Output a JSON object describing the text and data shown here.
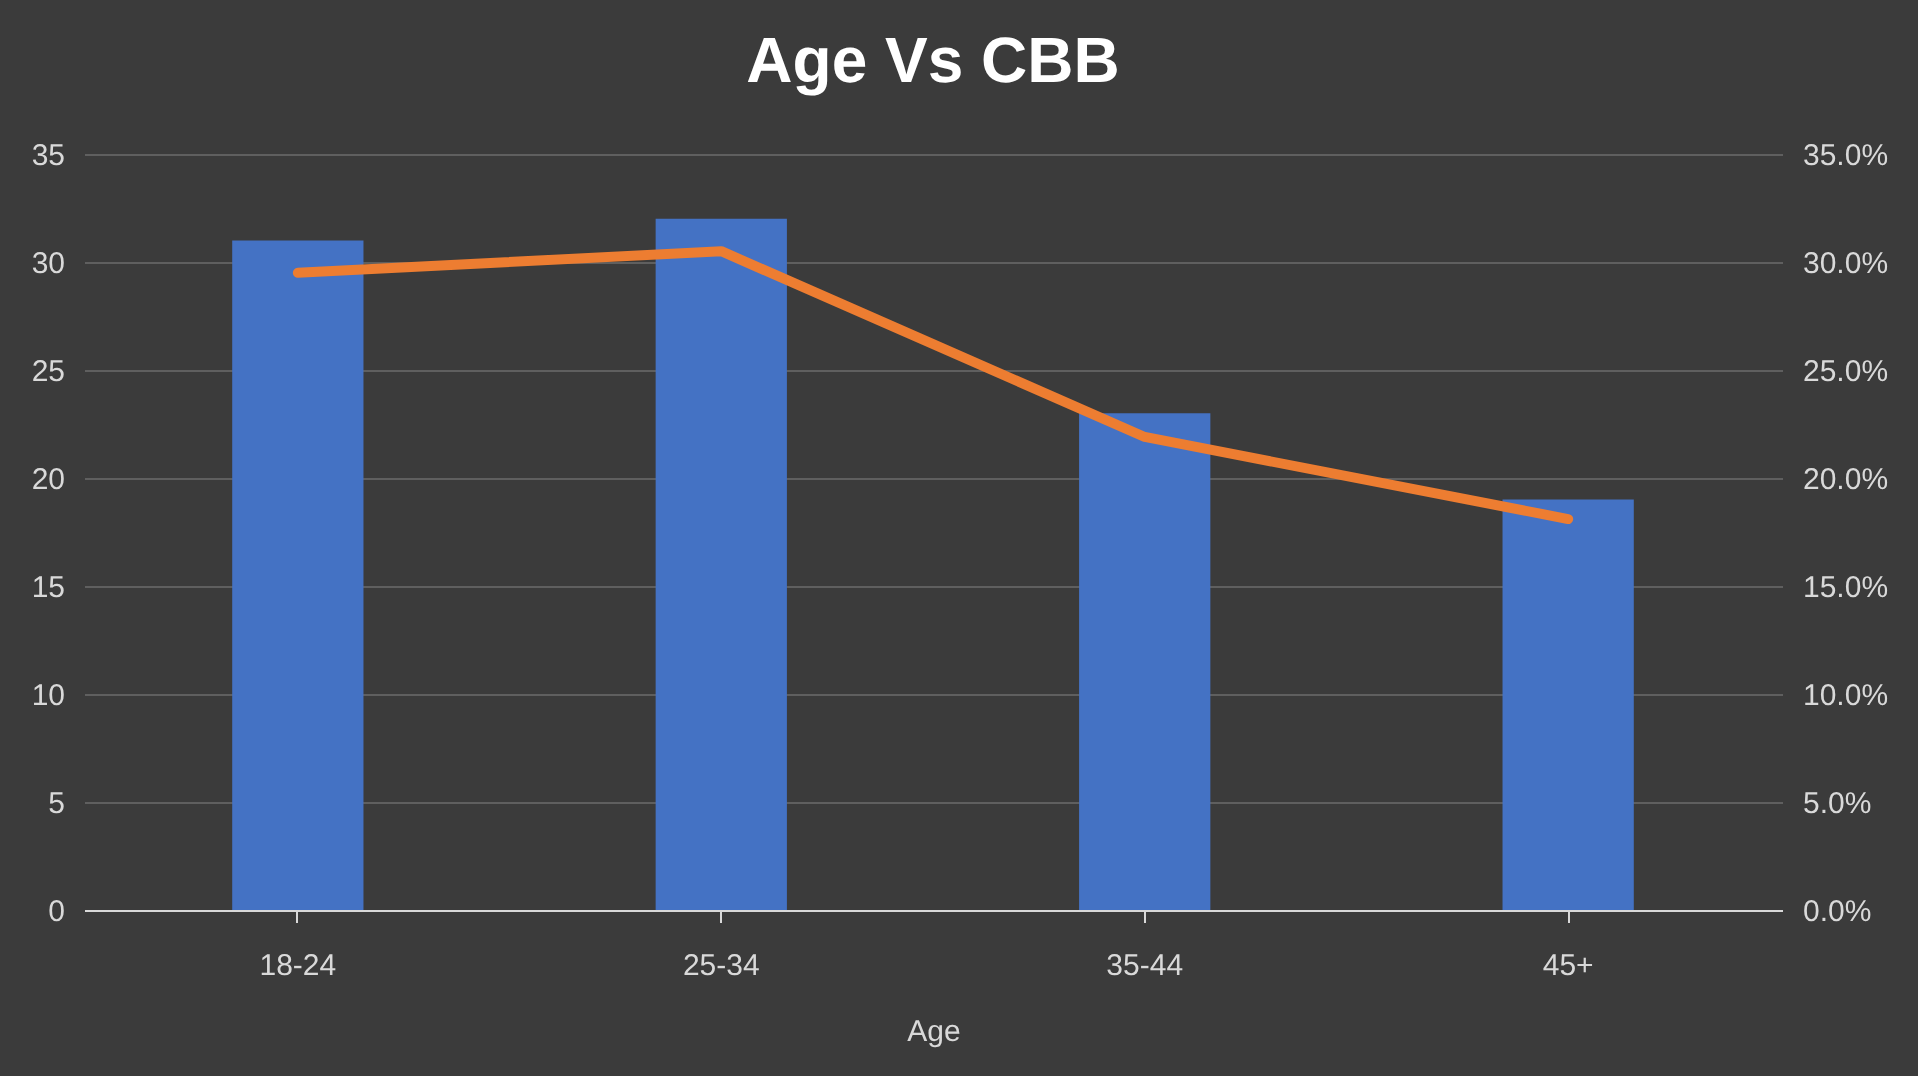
{
  "chart_data": {
    "type": "bar",
    "title": "Age Vs CBB",
    "xlabel": "Age",
    "categories": [
      "18-24",
      "25-34",
      "35-44",
      "45+"
    ],
    "series": [
      {
        "color": "#4472c4",
        "values": [
          31,
          32,
          23,
          19
        ]
      },
      {
        "type": "line",
        "axis": "y2",
        "color": "#ed7d31",
        "values": [
          29.5,
          30.5,
          21.9,
          18.1
        ]
      }
    ],
    "ylim": [
      0,
      35
    ],
    "yticks": [
      0,
      5,
      10,
      15,
      20,
      25,
      30,
      35
    ],
    "y2lim": [
      0,
      35
    ],
    "y2ticks": [
      {
        "value": 0,
        "label": "0.0%"
      },
      {
        "value": 5,
        "label": "5.0%"
      },
      {
        "value": 10,
        "label": "10.0%"
      },
      {
        "value": 15,
        "label": "15.0%"
      },
      {
        "value": 20,
        "label": "20.0%"
      },
      {
        "value": 25,
        "label": "25.0%"
      },
      {
        "value": 30,
        "label": "30.0%"
      },
      {
        "value": 35,
        "label": "35.0%"
      }
    ],
    "grid": "y"
  }
}
